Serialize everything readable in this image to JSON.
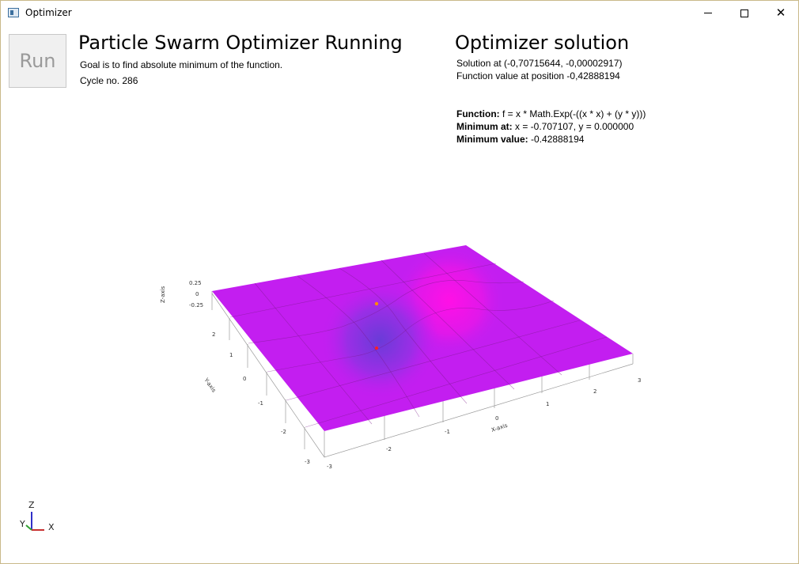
{
  "window": {
    "title": "Optimizer",
    "controls": {
      "minimize": "minimize-icon",
      "maximize": "maximize-icon",
      "close": "close-icon"
    }
  },
  "toolbar": {
    "run_label": "Run"
  },
  "left_panel": {
    "heading": "Particle Swarm Optimizer Running",
    "goal_text": "Goal is to find absolute minimum of the function.",
    "cycle_text": "Cycle no. 286"
  },
  "solution_panel": {
    "heading": "Optimizer solution",
    "solution_text": "Solution at (-0,70715644, -0,00002917)",
    "function_value_text": "Function value at position -0,42888194",
    "function_label": "Function:",
    "function_value": " f = x * Math.Exp(-((x * x) + (y * y)))",
    "minimum_at_label": "Minimum at:",
    "minimum_at_value": " x = -0.707107, y = 0.000000",
    "minimum_value_label": "Minimum value:",
    "minimum_value_value": " -0.42888194"
  },
  "chart_data": {
    "type": "surface",
    "function": "f = x * Math.Exp(-((x * x) + (y * y)))",
    "x_label": "X-axis",
    "y_label": "Y-axis",
    "z_label": "Z-axis",
    "x_ticks": [
      "-3",
      "-2",
      "-1",
      "0",
      "1",
      "2",
      "3"
    ],
    "y_ticks": [
      "-3",
      "-2",
      "-1",
      "0",
      "1",
      "2"
    ],
    "z_ticks": [
      "0.25",
      "0",
      "-0.25"
    ],
    "particles": [
      {
        "color": "#ff8c00",
        "x": -0.3,
        "y": 0.6
      },
      {
        "color": "#ff2020",
        "x": -0.71,
        "y": 0.0
      }
    ],
    "surface_colors": {
      "low": "#6a3bd8",
      "mid": "#c31ef0",
      "high": "#ff10e6"
    }
  },
  "axis_gizmo": {
    "z": "Z",
    "y": "Y",
    "x": "X"
  }
}
